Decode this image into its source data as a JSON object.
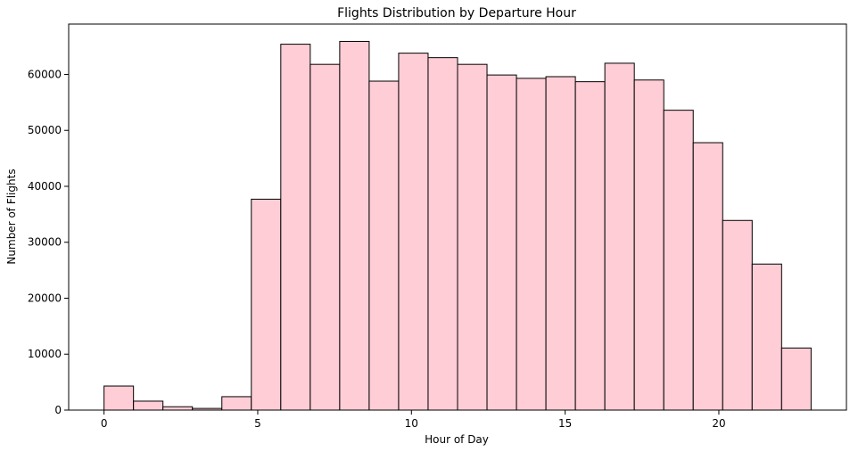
{
  "chart_data": {
    "type": "bar",
    "title": "Flights Distribution by Departure Hour",
    "xlabel": "Hour of Day",
    "ylabel": "Number of Flights",
    "bin_edges": [
      0,
      0.9583,
      1.9167,
      2.875,
      3.8333,
      4.7917,
      5.75,
      6.7083,
      7.6667,
      8.625,
      9.5833,
      10.5417,
      11.5,
      12.4583,
      13.4167,
      14.375,
      15.3333,
      16.2917,
      17.25,
      18.2083,
      19.1667,
      20.125,
      21.0833,
      22.0417,
      23
    ],
    "values": [
      4300,
      1600,
      600,
      300,
      2400,
      37700,
      65400,
      61800,
      65900,
      58800,
      63800,
      63000,
      61800,
      59900,
      59300,
      59600,
      58700,
      62000,
      59000,
      53600,
      47800,
      33900,
      26100,
      11100
    ],
    "xlim": [
      -1.15,
      24.15
    ],
    "ylim": [
      0,
      69000
    ],
    "xticks": [
      0,
      5,
      10,
      15,
      20
    ],
    "yticks": [
      0,
      10000,
      20000,
      30000,
      40000,
      50000,
      60000
    ],
    "bar_color": "#ffcdd6",
    "edge_color": "#000000",
    "grid": false
  }
}
